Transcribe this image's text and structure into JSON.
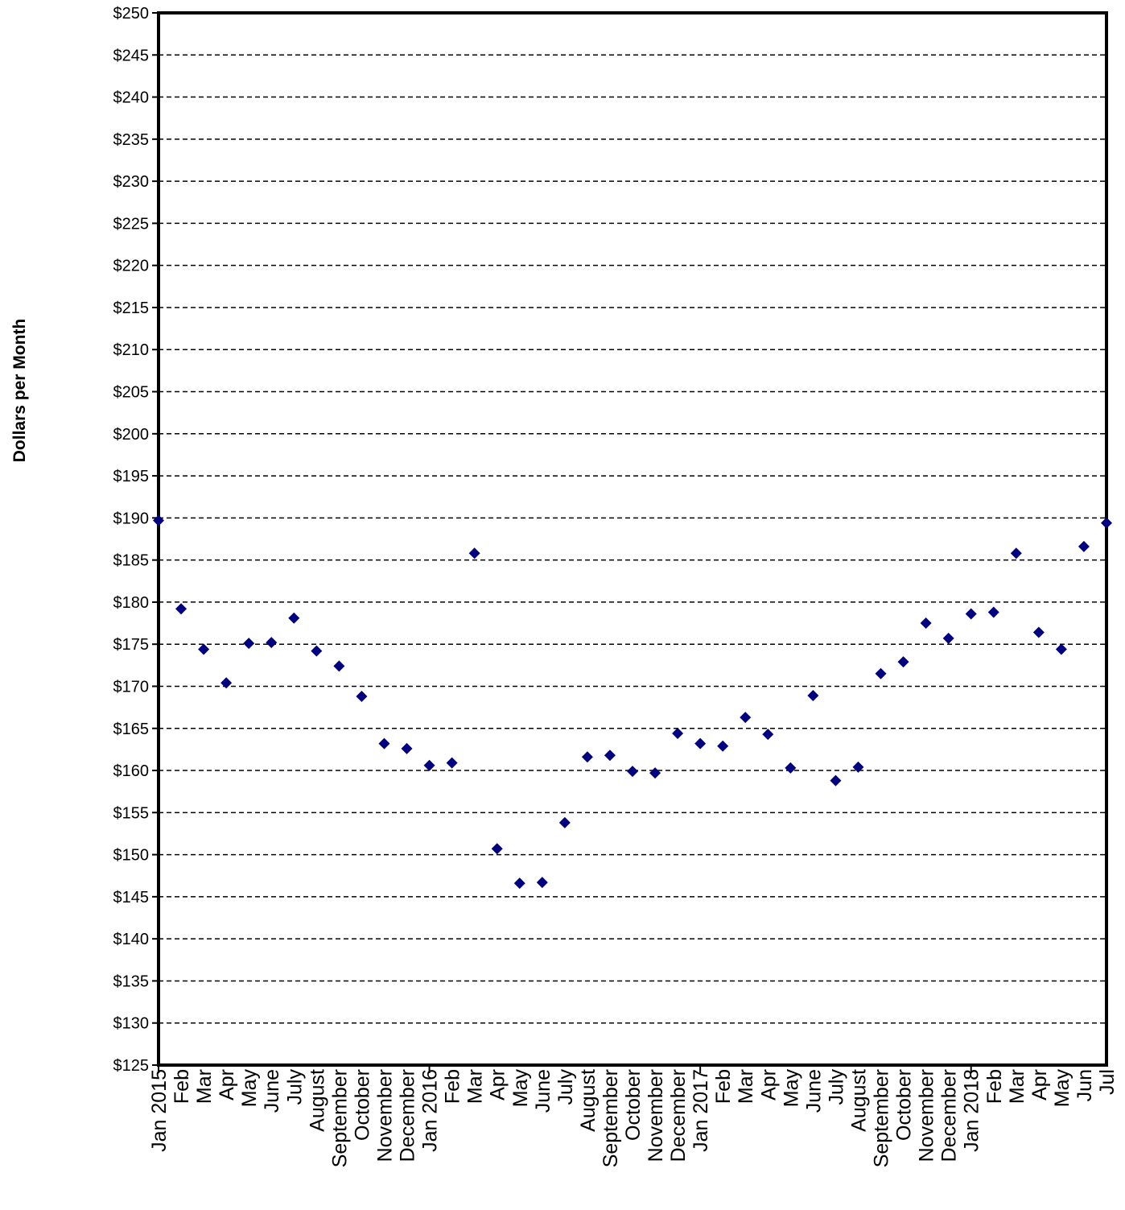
{
  "chart_data": {
    "type": "scatter",
    "title": "",
    "xlabel": "",
    "ylabel": "Dollars per Month",
    "ylim": [
      125,
      250
    ],
    "ytick_step": 5,
    "ytick_format": "$",
    "grid": "horizontal dashed",
    "legend": "none",
    "marker": "diamond",
    "marker_color": "#000080",
    "categories": [
      "Jan 2015",
      "Feb",
      "Mar",
      "Apr",
      "May",
      "June",
      "July",
      "August",
      "September",
      "October",
      "November",
      "December",
      "Jan 2016",
      "Feb",
      "Mar",
      "Apr",
      "May",
      "June",
      "July",
      "August",
      "September",
      "October",
      "November",
      "December",
      "Jan 2017",
      "Feb",
      "Mar",
      "Apr",
      "May",
      "June",
      "July",
      "August",
      "September",
      "October",
      "November",
      "December",
      "Jan 2018",
      "Feb",
      "Mar",
      "Apr",
      "May",
      "Jun",
      "Jul"
    ],
    "major_tick_indices": [
      0,
      12,
      24,
      36
    ],
    "values": [
      189.7,
      179.2,
      174.4,
      170.4,
      175.1,
      175.2,
      178.1,
      174.2,
      172.4,
      168.8,
      163.2,
      162.6,
      160.6,
      160.9,
      185.8,
      150.7,
      146.6,
      146.7,
      153.8,
      161.6,
      161.8,
      159.9,
      159.7,
      164.4,
      163.2,
      162.9,
      166.3,
      164.3,
      160.3,
      168.9,
      158.8,
      160.4,
      171.5,
      172.9,
      177.5,
      175.7,
      178.6,
      178.8,
      185.8,
      176.4,
      174.4,
      186.6,
      189.4
    ]
  }
}
